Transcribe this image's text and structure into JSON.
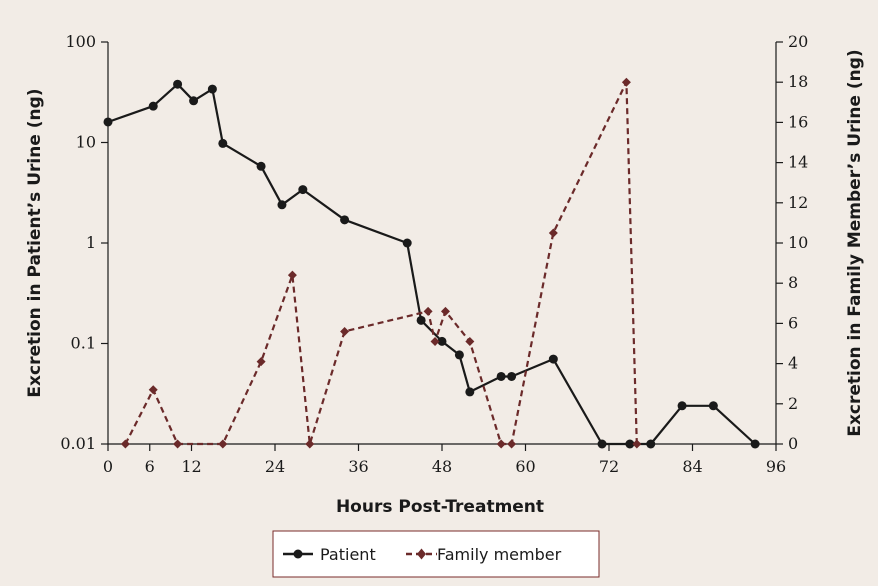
{
  "chart_data": {
    "type": "line",
    "xlabel": "Hours Post-Treatment",
    "ylabel_left": "Excretion in Patient’s Urine (ng)",
    "ylabel_right": "Excretion in Family Member’s Urine (ng)",
    "x_ticks": [
      "0",
      "6",
      "12",
      "24",
      "36",
      "48",
      "60",
      "72",
      "84",
      "96"
    ],
    "x_tick_values": [
      0,
      6,
      12,
      24,
      36,
      48,
      60,
      72,
      84,
      96
    ],
    "xlim": [
      0,
      96
    ],
    "y_left_scale": "log",
    "y_left_ticks": [
      "100",
      "10",
      "1",
      "0.1",
      "0.01"
    ],
    "y_left_tick_values": [
      100,
      10,
      1,
      0.1,
      0.01
    ],
    "y_left_lim": [
      0.01,
      100
    ],
    "y_right_ticks": [
      "20",
      "18",
      "16",
      "14",
      "12",
      "10",
      "8",
      "6",
      "4",
      "2",
      "0"
    ],
    "y_right_tick_values": [
      20,
      18,
      16,
      14,
      12,
      10,
      8,
      6,
      4,
      2,
      0
    ],
    "y_right_lim": [
      0,
      20
    ],
    "grid": false,
    "legend_position": "bottom-center",
    "series": [
      {
        "name": "Patient",
        "axis": "left",
        "color": "#1a1a1a",
        "marker": "circle",
        "line": "solid",
        "x": [
          0,
          6.5,
          10,
          12.3,
          15,
          16.5,
          22,
          25,
          28,
          34,
          43,
          45,
          48,
          50.5,
          52,
          56.5,
          58,
          64,
          71,
          75,
          78,
          82.5,
          87,
          93
        ],
        "y": [
          16,
          23,
          38,
          26,
          34,
          9.8,
          5.8,
          2.4,
          3.4,
          1.7,
          1.0,
          0.17,
          0.105,
          0.077,
          0.033,
          0.047,
          0.047,
          0.07,
          0.01,
          0.01,
          0.01,
          0.024,
          0.024,
          0.01
        ]
      },
      {
        "name": "Family member",
        "axis": "right",
        "color": "#6b2a2a",
        "marker": "diamond",
        "line": "dashed",
        "x": [
          2.5,
          6.5,
          10,
          16.5,
          22,
          26.5,
          29,
          34,
          46,
          47,
          48.5,
          52,
          56.5,
          58,
          64,
          74.5,
          76
        ],
        "y": [
          0,
          2.7,
          0,
          0,
          4.1,
          8.4,
          0,
          5.6,
          6.6,
          5.1,
          6.6,
          5.1,
          0,
          0,
          10.5,
          18,
          0
        ]
      }
    ]
  }
}
